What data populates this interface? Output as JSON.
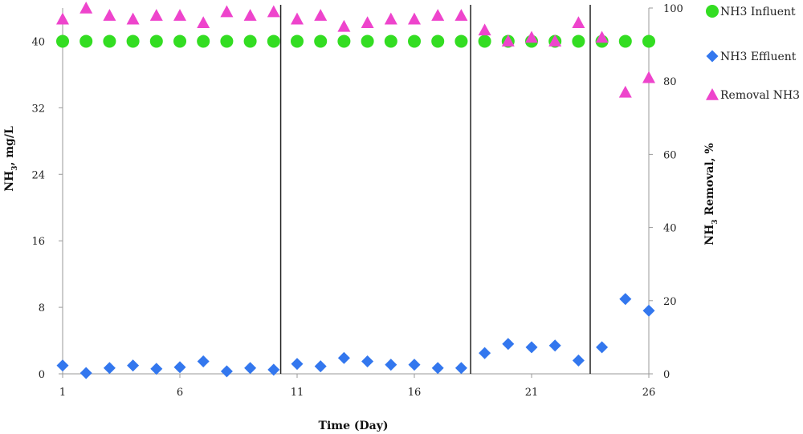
{
  "chart_data": {
    "type": "scatter",
    "title": "",
    "xlabel": "Time (Day)",
    "ylabel_left": "NH",
    "ylabel_left_sub": "3",
    "ylabel_left_suffix": ", mg/L",
    "ylabel_right": "NH",
    "ylabel_right_sub": "3",
    "ylabel_right_suffix": " Removal, %",
    "xlim": [
      1,
      26
    ],
    "ylim_left": [
      0,
      44
    ],
    "ylim_right": [
      0,
      100
    ],
    "x_ticks": [
      1,
      6,
      11,
      16,
      21,
      26
    ],
    "y_left_ticks": [
      0,
      8,
      16,
      24,
      32,
      40
    ],
    "y_right_ticks": [
      0,
      20,
      40,
      60,
      80,
      100
    ],
    "grid": false,
    "legend_position": "top-right",
    "phase_dividers_x": [
      10.3,
      18.4,
      23.5
    ],
    "x": [
      1,
      2,
      3,
      4,
      5,
      6,
      7,
      8,
      9,
      10,
      11,
      12,
      13,
      14,
      15,
      16,
      17,
      18,
      19,
      20,
      21,
      22,
      23,
      24,
      25,
      26
    ],
    "series": [
      {
        "name": "NH3 Influent",
        "axis": "left",
        "marker": "circle",
        "color": "#33dd22",
        "values": [
          40,
          40,
          40,
          40,
          40,
          40,
          40,
          40,
          40,
          40,
          40,
          40,
          40,
          40,
          40,
          40,
          40,
          40,
          40,
          40,
          40,
          40,
          40,
          40,
          40,
          40
        ]
      },
      {
        "name": "NH3 Effluent",
        "axis": "left",
        "marker": "diamond",
        "color": "#3377ee",
        "values": [
          1.0,
          0.1,
          0.7,
          1.0,
          0.6,
          0.8,
          1.5,
          0.3,
          0.7,
          0.5,
          1.2,
          0.9,
          1.9,
          1.5,
          1.1,
          1.1,
          0.7,
          0.7,
          2.5,
          3.6,
          3.2,
          3.4,
          1.6,
          3.2,
          9.0,
          7.6
        ]
      },
      {
        "name": "Removal NH3",
        "axis": "right",
        "marker": "triangle",
        "color": "#ee44cc",
        "values": [
          97,
          100,
          98,
          97,
          98,
          98,
          96,
          99,
          98,
          99,
          97,
          98,
          95,
          96,
          97,
          97,
          98,
          98,
          94,
          91,
          92,
          91,
          96,
          92,
          77,
          81
        ]
      }
    ]
  }
}
